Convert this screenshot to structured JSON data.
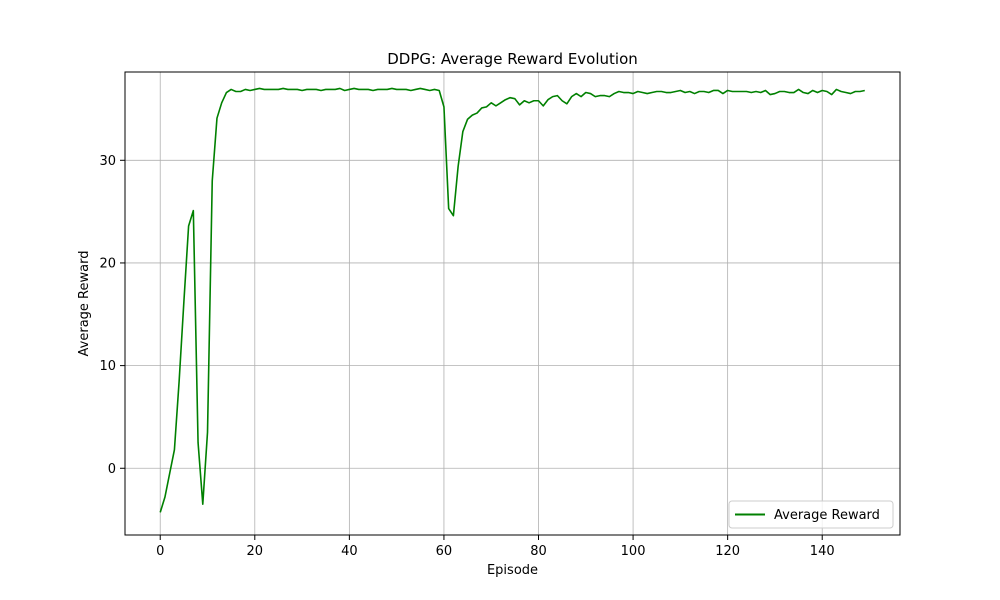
{
  "chart_data": {
    "type": "line",
    "title": "DDPG: Average Reward Evolution",
    "xlabel": "Episode",
    "ylabel": "Average Reward",
    "xlim": [
      -7.45,
      156.45
    ],
    "ylim": [
      -6.5,
      38.6
    ],
    "xticks": [
      0,
      20,
      40,
      60,
      80,
      100,
      120,
      140
    ],
    "yticks": [
      0,
      10,
      20,
      30
    ],
    "grid": true,
    "legend_position": "lower-right",
    "series": [
      {
        "name": "Average Reward",
        "color": "#008000",
        "x": [
          0,
          1,
          2,
          3,
          4,
          5,
          6,
          7,
          8,
          9,
          10,
          11,
          12,
          13,
          14,
          15,
          16,
          17,
          18,
          19,
          20,
          21,
          22,
          23,
          24,
          25,
          26,
          27,
          28,
          29,
          30,
          31,
          32,
          33,
          34,
          35,
          36,
          37,
          38,
          39,
          40,
          41,
          42,
          43,
          44,
          45,
          46,
          47,
          48,
          49,
          50,
          51,
          52,
          53,
          54,
          55,
          56,
          57,
          58,
          59,
          60,
          61,
          62,
          63,
          64,
          65,
          66,
          67,
          68,
          69,
          70,
          71,
          72,
          73,
          74,
          75,
          76,
          77,
          78,
          79,
          80,
          81,
          82,
          83,
          84,
          85,
          86,
          87,
          88,
          89,
          90,
          91,
          92,
          93,
          94,
          95,
          96,
          97,
          98,
          99,
          100,
          101,
          102,
          103,
          104,
          105,
          106,
          107,
          108,
          109,
          110,
          111,
          112,
          113,
          114,
          115,
          116,
          117,
          118,
          119,
          120,
          121,
          122,
          123,
          124,
          125,
          126,
          127,
          128,
          129,
          130,
          131,
          132,
          133,
          134,
          135,
          136,
          137,
          138,
          139,
          140,
          141,
          142,
          143,
          144,
          145,
          146,
          147,
          148,
          149
        ],
        "y": [
          -4.3,
          -2.8,
          -0.5,
          1.8,
          8.5,
          16.2,
          23.6,
          25.1,
          2.5,
          -3.5,
          3.5,
          28.0,
          34.1,
          35.6,
          36.6,
          36.9,
          36.7,
          36.7,
          36.9,
          36.8,
          36.9,
          37.0,
          36.9,
          36.9,
          36.9,
          36.9,
          37.0,
          36.9,
          36.9,
          36.9,
          36.8,
          36.9,
          36.9,
          36.9,
          36.8,
          36.9,
          36.9,
          36.9,
          37.0,
          36.8,
          36.9,
          37.0,
          36.9,
          36.9,
          36.9,
          36.8,
          36.9,
          36.9,
          36.9,
          37.0,
          36.9,
          36.9,
          36.9,
          36.8,
          36.9,
          37.0,
          36.9,
          36.8,
          36.9,
          36.8,
          35.2,
          25.3,
          24.6,
          29.4,
          32.8,
          34.0,
          34.4,
          34.6,
          35.1,
          35.2,
          35.6,
          35.3,
          35.6,
          35.9,
          36.1,
          36.0,
          35.4,
          35.8,
          35.6,
          35.8,
          35.8,
          35.3,
          35.9,
          36.2,
          36.3,
          35.8,
          35.5,
          36.2,
          36.5,
          36.2,
          36.6,
          36.5,
          36.2,
          36.3,
          36.3,
          36.2,
          36.5,
          36.7,
          36.6,
          36.6,
          36.5,
          36.7,
          36.6,
          36.5,
          36.6,
          36.7,
          36.7,
          36.6,
          36.6,
          36.7,
          36.8,
          36.6,
          36.7,
          36.5,
          36.7,
          36.7,
          36.6,
          36.8,
          36.8,
          36.5,
          36.8,
          36.7,
          36.7,
          36.7,
          36.7,
          36.6,
          36.7,
          36.6,
          36.8,
          36.4,
          36.5,
          36.7,
          36.7,
          36.6,
          36.6,
          36.9,
          36.6,
          36.5,
          36.8,
          36.6,
          36.8,
          36.7,
          36.4,
          36.9,
          36.7,
          36.6,
          36.5,
          36.7,
          36.7,
          36.8
        ]
      }
    ]
  }
}
